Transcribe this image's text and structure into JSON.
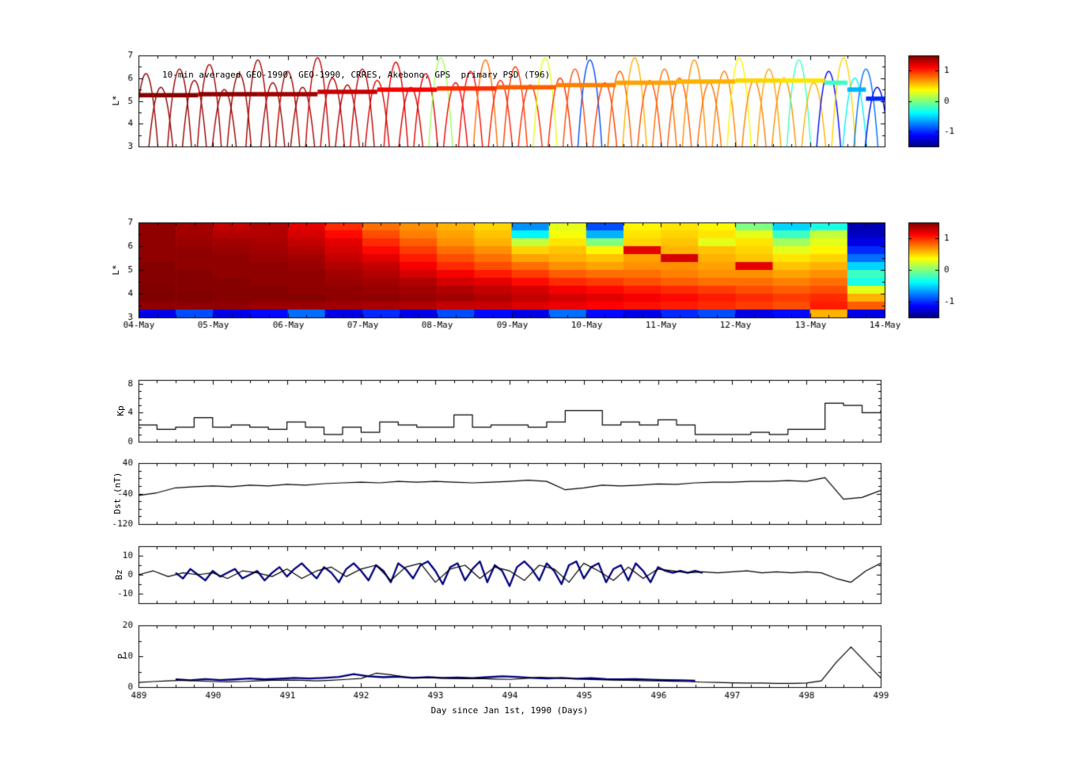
{
  "annotation": {
    "top_title": "10-min averaged GEO-1990, GEO-1990, CRRES, Akebono, GPS  primary PSD (T96)"
  },
  "labels": {
    "l_star": "L*",
    "kp": "Kp",
    "dst": "Dst (nT)",
    "bz": "Bz",
    "p": "P",
    "xlabel": "Day since Jan 1st, 1990 (Days)"
  },
  "chart_data": [
    {
      "id": "psd_top",
      "type": "scatter",
      "title": "10-min averaged GEO-1990, GEO-1990, CRRES, Akebono, GPS  primary PSD (T96)",
      "ylabel": "L*",
      "ylim": [
        3,
        7
      ],
      "yticks": [
        3,
        4,
        5,
        6,
        7
      ],
      "yminor": [
        3.5,
        4.5,
        5.5,
        6.5
      ],
      "xlim_days": [
        0,
        10
      ],
      "colorbar": {
        "range": [
          -1.5,
          1.5
        ],
        "ticks": [
          1,
          0,
          -1
        ]
      },
      "band_segments": [
        [
          0.0,
          0.8,
          5.25,
          1.48
        ],
        [
          0.8,
          1.6,
          5.3,
          1.45
        ],
        [
          1.6,
          2.4,
          5.3,
          1.4
        ],
        [
          2.4,
          3.2,
          5.4,
          1.3
        ],
        [
          3.2,
          4.0,
          5.5,
          1.15
        ],
        [
          4.0,
          4.8,
          5.55,
          1.0
        ],
        [
          4.8,
          5.6,
          5.6,
          0.85
        ],
        [
          5.6,
          6.4,
          5.7,
          0.75
        ],
        [
          6.4,
          7.2,
          5.8,
          0.65
        ],
        [
          7.2,
          8.0,
          5.85,
          0.6
        ],
        [
          8.0,
          8.6,
          5.9,
          0.5
        ],
        [
          8.6,
          9.2,
          5.9,
          0.45
        ],
        [
          9.2,
          9.5,
          5.8,
          -0.2
        ],
        [
          9.5,
          9.75,
          5.5,
          -0.6
        ],
        [
          9.75,
          10.0,
          5.1,
          -1.0
        ]
      ],
      "arcs": [
        [
          0.1,
          6.2,
          1.45
        ],
        [
          0.3,
          5.6,
          1.45
        ],
        [
          0.55,
          6.4,
          1.42
        ],
        [
          0.75,
          5.9,
          1.45
        ],
        [
          0.95,
          6.6,
          1.4
        ],
        [
          1.15,
          5.5,
          1.42
        ],
        [
          1.35,
          6.2,
          1.4
        ],
        [
          1.6,
          6.8,
          1.38
        ],
        [
          1.8,
          5.8,
          1.4
        ],
        [
          2.0,
          6.3,
          1.35
        ],
        [
          2.2,
          5.6,
          1.38
        ],
        [
          2.4,
          6.9,
          1.3
        ],
        [
          2.6,
          6.0,
          1.32
        ],
        [
          2.8,
          5.7,
          1.35
        ],
        [
          3.0,
          6.4,
          1.3
        ],
        [
          3.2,
          5.9,
          1.25
        ],
        [
          3.45,
          6.7,
          1.2
        ],
        [
          3.65,
          5.6,
          1.25
        ],
        [
          3.85,
          6.2,
          1.2
        ],
        [
          4.05,
          6.9,
          0.1
        ],
        [
          4.25,
          5.8,
          1.15
        ],
        [
          4.45,
          6.3,
          1.1
        ],
        [
          4.65,
          6.8,
          0.8
        ],
        [
          4.85,
          5.9,
          1.05
        ],
        [
          5.05,
          6.5,
          0.95
        ],
        [
          5.25,
          5.7,
          1.0
        ],
        [
          5.45,
          6.9,
          0.3
        ],
        [
          5.65,
          6.0,
          1.0
        ],
        [
          5.85,
          6.4,
          0.9
        ],
        [
          6.05,
          6.8,
          -0.9
        ],
        [
          6.25,
          5.8,
          0.95
        ],
        [
          6.45,
          6.3,
          0.85
        ],
        [
          6.65,
          6.9,
          0.6
        ],
        [
          6.85,
          5.9,
          0.9
        ],
        [
          7.05,
          6.4,
          0.8
        ],
        [
          7.25,
          6.0,
          0.85
        ],
        [
          7.45,
          6.8,
          0.7
        ],
        [
          7.65,
          5.8,
          0.8
        ],
        [
          7.85,
          6.3,
          0.75
        ],
        [
          8.05,
          6.9,
          0.4
        ],
        [
          8.25,
          5.9,
          0.75
        ],
        [
          8.45,
          6.4,
          0.65
        ],
        [
          8.65,
          6.0,
          0.7
        ],
        [
          8.85,
          6.8,
          -0.2
        ],
        [
          9.05,
          5.8,
          0.6
        ],
        [
          9.25,
          6.3,
          -1.1
        ],
        [
          9.45,
          6.9,
          0.5
        ],
        [
          9.6,
          6.0,
          -0.4
        ],
        [
          9.75,
          6.4,
          -0.8
        ],
        [
          9.9,
          5.6,
          -1.2
        ]
      ]
    },
    {
      "id": "psd_heatmap",
      "type": "heatmap",
      "ylabel": "L*",
      "ylim": [
        3,
        7
      ],
      "yticks": [
        3,
        4,
        5,
        6,
        7
      ],
      "yminor": [
        3.5,
        4.5,
        5.5,
        6.5
      ],
      "x_categories": [
        "04-May",
        "05-May",
        "06-May",
        "07-May",
        "08-May",
        "09-May",
        "10-May",
        "11-May",
        "12-May",
        "13-May",
        "14-May"
      ],
      "colorbar": {
        "range": [
          -1.5,
          1.5
        ],
        "ticks": [
          1,
          0,
          -1
        ]
      },
      "grid_rows_top_to_bottom": [
        [
          1.45,
          1.4,
          1.3,
          1.35,
          1.2,
          1.0,
          0.8,
          0.7,
          0.6,
          0.5,
          -0.7,
          0.3,
          -0.9,
          0.4,
          0.45,
          0.4,
          0.0,
          -0.5,
          -0.3,
          -1.35
        ],
        [
          1.45,
          1.4,
          1.35,
          1.35,
          1.25,
          1.1,
          0.9,
          0.75,
          0.65,
          0.55,
          -0.4,
          0.35,
          -0.6,
          0.45,
          0.5,
          0.45,
          0.3,
          -0.2,
          0.2,
          -1.3
        ],
        [
          1.45,
          1.42,
          1.4,
          1.38,
          1.3,
          1.2,
          1.0,
          0.85,
          0.7,
          0.6,
          0.2,
          0.45,
          0.0,
          0.5,
          0.55,
          0.3,
          0.45,
          0.1,
          0.3,
          -1.2
        ],
        [
          1.45,
          1.45,
          1.42,
          1.4,
          1.35,
          1.25,
          1.1,
          0.95,
          0.8,
          0.7,
          0.5,
          0.55,
          0.4,
          1.2,
          0.6,
          0.55,
          0.5,
          0.3,
          0.4,
          -1.0
        ],
        [
          1.45,
          1.45,
          1.45,
          1.42,
          1.4,
          1.3,
          1.2,
          1.05,
          0.9,
          0.8,
          0.65,
          0.6,
          0.55,
          0.65,
          1.25,
          0.6,
          0.55,
          0.45,
          0.5,
          -0.8
        ],
        [
          1.48,
          1.45,
          1.45,
          1.45,
          1.42,
          1.35,
          1.3,
          1.15,
          1.0,
          0.9,
          0.8,
          0.7,
          0.65,
          0.7,
          0.7,
          0.65,
          1.2,
          0.55,
          0.6,
          -0.5
        ],
        [
          1.48,
          1.48,
          1.45,
          1.45,
          1.45,
          1.4,
          1.35,
          1.25,
          1.15,
          1.05,
          0.95,
          0.85,
          0.8,
          0.8,
          0.75,
          0.7,
          0.7,
          0.65,
          0.7,
          -0.2
        ],
        [
          1.48,
          1.48,
          1.48,
          1.45,
          1.45,
          1.42,
          1.4,
          1.35,
          1.25,
          1.2,
          1.1,
          1.0,
          0.95,
          0.9,
          0.85,
          0.8,
          0.8,
          0.75,
          0.8,
          -0.3
        ],
        [
          1.5,
          1.48,
          1.48,
          1.48,
          1.45,
          1.45,
          1.42,
          1.4,
          1.35,
          1.3,
          1.25,
          1.15,
          1.1,
          1.05,
          1.0,
          0.95,
          0.9,
          0.85,
          0.9,
          0.3
        ],
        [
          1.5,
          1.5,
          1.48,
          1.48,
          1.48,
          1.45,
          1.45,
          1.42,
          1.4,
          1.35,
          1.3,
          1.25,
          1.2,
          1.15,
          1.1,
          1.05,
          1.0,
          0.95,
          1.0,
          0.6
        ],
        [
          1.45,
          1.45,
          1.45,
          1.42,
          1.42,
          1.4,
          1.38,
          1.35,
          1.3,
          1.28,
          1.22,
          1.18,
          1.12,
          1.08,
          1.05,
          1.0,
          0.95,
          0.9,
          1.05,
          0.85
        ],
        [
          -1.2,
          -0.9,
          -1.2,
          -1.1,
          -0.8,
          -1.2,
          -1.0,
          -1.2,
          -0.9,
          -1.1,
          -1.2,
          -0.8,
          -1.1,
          -1.2,
          -1.0,
          -0.9,
          -1.2,
          -1.1,
          0.6,
          -1.2
        ]
      ]
    },
    {
      "id": "kp",
      "type": "line",
      "ylabel": "Kp",
      "ylim": [
        0,
        8.5
      ],
      "yticks": [
        0,
        4,
        8
      ],
      "yminor": [
        1,
        2,
        3,
        5,
        6,
        7
      ],
      "xlim": [
        489,
        499
      ],
      "step": true,
      "x_start": 489,
      "dx": 0.25,
      "values": [
        2.3,
        1.7,
        2.0,
        3.3,
        2.0,
        2.3,
        2.0,
        1.7,
        2.7,
        2.0,
        1.0,
        2.0,
        1.3,
        2.7,
        2.3,
        2.0,
        2.0,
        3.7,
        2.0,
        2.3,
        2.3,
        2.0,
        2.7,
        4.3,
        4.3,
        2.3,
        2.7,
        2.3,
        3.0,
        2.3,
        1.0,
        1.0,
        1.0,
        1.3,
        1.0,
        1.7,
        1.7,
        5.3,
        5.0,
        4.0,
        4.3
      ]
    },
    {
      "id": "dst",
      "type": "line",
      "ylabel": "Dst (nT)",
      "ylim": [
        -120,
        40
      ],
      "yticks": [
        40,
        -40,
        -120
      ],
      "yminor": [
        20,
        0,
        -20,
        -60,
        -80,
        -100
      ],
      "xlim": [
        489,
        499
      ],
      "x_start": 489,
      "dx": 0.25,
      "values": [
        -45,
        -38,
        -25,
        -22,
        -20,
        -22,
        -18,
        -20,
        -16,
        -18,
        -14,
        -12,
        -10,
        -12,
        -8,
        -10,
        -8,
        -10,
        -12,
        -10,
        -8,
        -5,
        -8,
        -30,
        -25,
        -18,
        -20,
        -18,
        -15,
        -16,
        -12,
        -10,
        -10,
        -8,
        -8,
        -6,
        -8,
        2,
        -55,
        -50,
        -32
      ]
    },
    {
      "id": "bz",
      "type": "line",
      "ylabel": "Bz",
      "ylim": [
        -15,
        15
      ],
      "yticks": [
        10,
        0,
        -10
      ],
      "yminor": [
        5,
        -5
      ],
      "xlim": [
        489,
        499
      ],
      "x_start": 489,
      "dx": 0.2,
      "values": [
        0,
        2,
        -1,
        1,
        0,
        1,
        -2,
        2,
        1,
        -1,
        3,
        -2,
        2,
        4,
        -1,
        3,
        5,
        -3,
        4,
        6,
        -4,
        3,
        5,
        -2,
        4,
        2,
        -3,
        5,
        3,
        -4,
        6,
        2,
        -3,
        4,
        -2,
        3,
        2,
        1,
        1.5,
        1,
        1.5,
        2,
        1,
        1.5,
        1,
        1.5,
        1,
        -2,
        -4,
        2,
        6
      ],
      "overlay": {
        "color": "#000080",
        "x_start": 489.5,
        "dx": 0.1,
        "values": [
          1,
          -2,
          3,
          0,
          -3,
          2,
          -1,
          1,
          3,
          -2,
          0,
          2,
          -3,
          1,
          4,
          -1,
          3,
          6,
          2,
          -2,
          4,
          1,
          -4,
          3,
          6,
          2,
          -3,
          5,
          2,
          -4,
          6,
          3,
          -2,
          5,
          7,
          2,
          -5,
          4,
          6,
          -3,
          3,
          7,
          -4,
          5,
          2,
          -6,
          4,
          7,
          3,
          -3,
          6,
          2,
          -5,
          5,
          7,
          -2,
          4,
          6,
          -4,
          3,
          5,
          -3,
          6,
          2,
          -4,
          4,
          2,
          1,
          2,
          1,
          2,
          1
        ]
      }
    },
    {
      "id": "p",
      "type": "line",
      "ylabel": "P",
      "ylim": [
        0,
        20
      ],
      "yticks": [
        0,
        10,
        20
      ],
      "yminor": [
        5,
        15
      ],
      "xlim": [
        489,
        499
      ],
      "xticks": [
        489,
        490,
        491,
        492,
        493,
        494,
        495,
        496,
        497,
        498,
        499
      ],
      "xlabel": "Day since Jan 1st, 1990 (Days)",
      "x_start": 489,
      "dx": 0.2,
      "values": [
        1.5,
        1.8,
        2.0,
        2.2,
        2.0,
        1.8,
        1.7,
        1.8,
        2.0,
        2.2,
        2.3,
        2.2,
        2.0,
        2.2,
        2.5,
        2.8,
        4.5,
        4.0,
        3.2,
        3.0,
        3.0,
        2.8,
        2.7,
        2.8,
        2.6,
        2.5,
        2.8,
        3.2,
        3.0,
        2.8,
        2.5,
        2.4,
        2.3,
        2.2,
        2.1,
        2.0,
        1.9,
        1.8,
        1.6,
        1.5,
        1.4,
        1.3,
        1.3,
        1.2,
        1.2,
        1.3,
        2.0,
        8.0,
        13.0,
        8.0,
        3.0
      ],
      "overlay": {
        "color": "#000080",
        "x_start": 489.5,
        "dx": 0.2,
        "values": [
          2.5,
          2.2,
          2.6,
          2.3,
          2.5,
          2.8,
          2.5,
          2.7,
          3.0,
          2.8,
          3.0,
          3.3,
          4.2,
          3.5,
          3.2,
          3.4,
          3.0,
          3.2,
          3.0,
          3.1,
          2.9,
          3.2,
          3.5,
          3.3,
          3.0,
          2.8,
          3.0,
          2.7,
          2.9,
          2.6,
          2.5,
          2.6,
          2.4,
          2.3,
          2.2,
          2.1
        ]
      }
    }
  ],
  "time_axis": {
    "xlim": [
      489,
      499
    ],
    "xticks": [
      "489",
      "490",
      "491",
      "492",
      "493",
      "494",
      "495",
      "496",
      "497",
      "498",
      "499"
    ],
    "xlabel": "Day since Jan 1st, 1990 (Days)"
  }
}
